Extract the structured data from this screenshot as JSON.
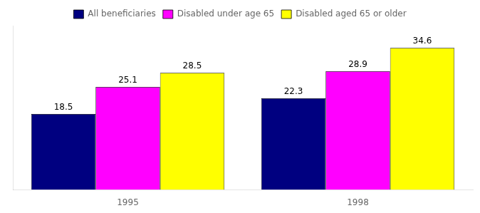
{
  "chart_data": {
    "type": "bar",
    "categories": [
      "1995",
      "1998"
    ],
    "series": [
      {
        "name": "All beneficiaries",
        "color": "#000080",
        "values": [
          18.5,
          22.3
        ]
      },
      {
        "name": "Disabled under age 65",
        "color": "#FF00FF",
        "values": [
          25.1,
          28.9
        ]
      },
      {
        "name": "Disabled aged 65 or older",
        "color": "#FFFF00",
        "values": [
          28.5,
          34.6
        ]
      }
    ],
    "ylim": [
      0,
      40
    ],
    "grid": false,
    "legend": "top",
    "data_labels": true,
    "tick_labels": "x"
  }
}
